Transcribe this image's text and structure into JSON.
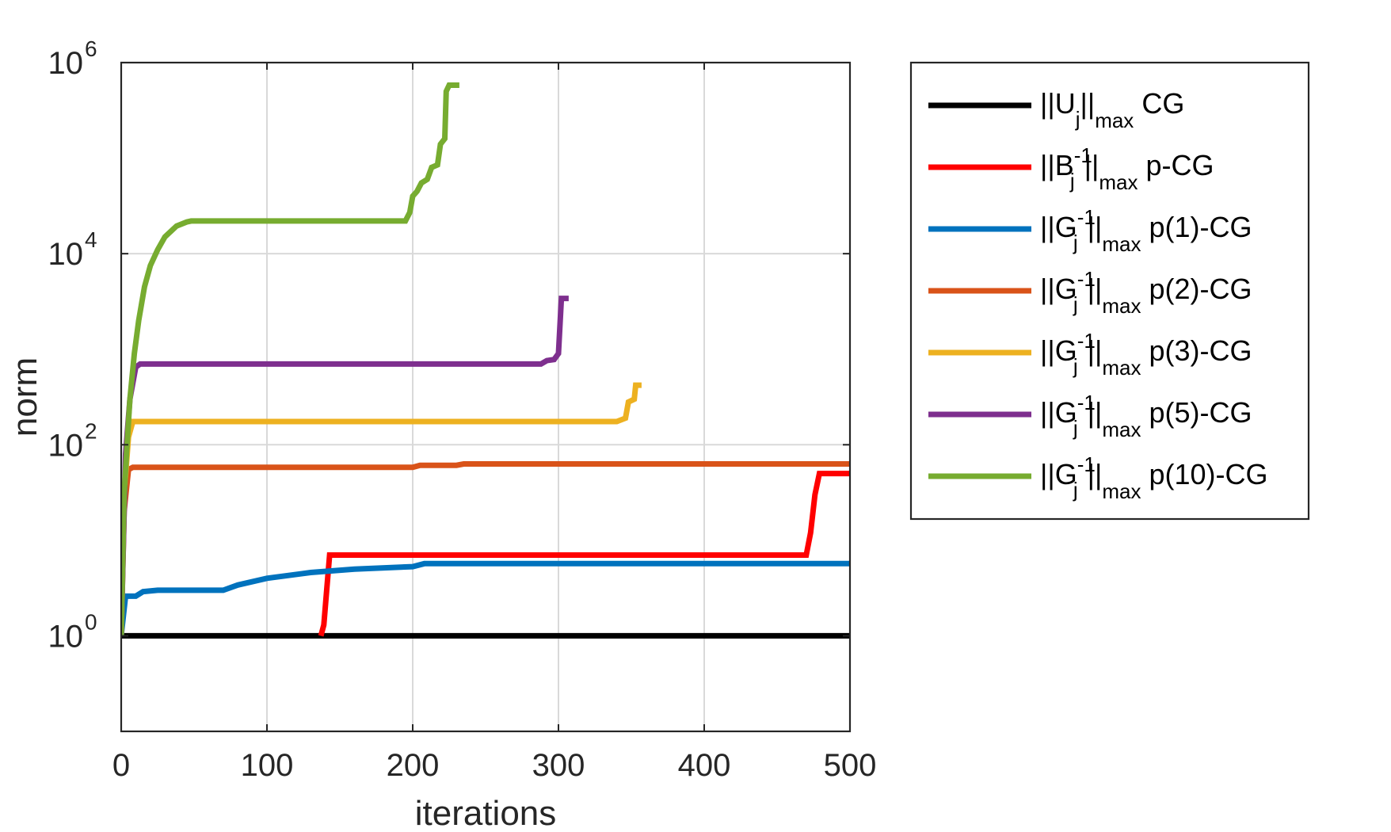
{
  "chart_data": {
    "type": "line",
    "xlabel": "iterations",
    "ylabel": "norm",
    "xlim": [
      0,
      500
    ],
    "ylim": [
      0.1,
      1000000
    ],
    "yscale": "log",
    "grid": true,
    "legend_position": "outside-right",
    "x_ticks": [
      "0",
      "100",
      "200",
      "300",
      "400",
      "500"
    ],
    "y_ticks": [
      {
        "base": "10",
        "exp": "0",
        "value": 1
      },
      {
        "base": "10",
        "exp": "2",
        "value": 100
      },
      {
        "base": "10",
        "exp": "4",
        "value": 10000
      },
      {
        "base": "10",
        "exp": "6",
        "value": 1000000
      }
    ],
    "series": [
      {
        "name": "||Uj||max CG",
        "legend": {
          "pre": "||U",
          "sub1": "j",
          "sup": "",
          "mid": "||",
          "sub2": "max",
          "post": " CG"
        },
        "color": "#000000",
        "points": [
          [
            0,
            1
          ],
          [
            500,
            1
          ]
        ]
      },
      {
        "name": "||Bj-1||max p-CG",
        "legend": {
          "pre": "||B",
          "sub1": "j",
          "sup": "-1",
          "mid": "||",
          "sub2": "max",
          "post": " p-CG"
        },
        "color": "#ff0000",
        "points": [
          [
            137,
            1
          ],
          [
            139,
            1.3
          ],
          [
            141,
            3
          ],
          [
            143,
            7
          ],
          [
            300,
            7
          ],
          [
            470,
            7
          ],
          [
            473,
            12
          ],
          [
            476,
            30
          ],
          [
            479,
            50
          ],
          [
            500,
            50
          ]
        ]
      },
      {
        "name": "||Gj-1||max p(1)-CG",
        "legend": {
          "pre": "||G",
          "sub1": "j",
          "sup": "-1",
          "mid": "||",
          "sub2": "max",
          "post": " p(1)-CG"
        },
        "color": "#0072bd",
        "points": [
          [
            0,
            1
          ],
          [
            3,
            2.6
          ],
          [
            10,
            2.6
          ],
          [
            15,
            2.9
          ],
          [
            25,
            3.0
          ],
          [
            70,
            3.0
          ],
          [
            80,
            3.4
          ],
          [
            100,
            4.0
          ],
          [
            130,
            4.6
          ],
          [
            160,
            5.0
          ],
          [
            200,
            5.3
          ],
          [
            208,
            5.7
          ],
          [
            300,
            5.7
          ],
          [
            500,
            5.7
          ]
        ]
      },
      {
        "name": "||Gj-1||max p(2)-CG",
        "legend": {
          "pre": "||G",
          "sub1": "j",
          "sup": "-1",
          "mid": "||",
          "sub2": "max",
          "post": " p(2)-CG"
        },
        "color": "#d95319",
        "points": [
          [
            0,
            1
          ],
          [
            2,
            20
          ],
          [
            5,
            55
          ],
          [
            8,
            58
          ],
          [
            200,
            58
          ],
          [
            205,
            61
          ],
          [
            230,
            61
          ],
          [
            235,
            63
          ],
          [
            500,
            63
          ]
        ]
      },
      {
        "name": "||Gj-1||max p(3)-CG",
        "legend": {
          "pre": "||G",
          "sub1": "j",
          "sup": "-1",
          "mid": "||",
          "sub2": "max",
          "post": " p(3)-CG"
        },
        "color": "#edb120",
        "points": [
          [
            0,
            1
          ],
          [
            2,
            30
          ],
          [
            5,
            120
          ],
          [
            8,
            175
          ],
          [
            340,
            175
          ],
          [
            346,
            190
          ],
          [
            348,
            280
          ],
          [
            352,
            300
          ],
          [
            353,
            420
          ],
          [
            357,
            420
          ]
        ]
      },
      {
        "name": "||Gj-1||max p(5)-CG",
        "legend": {
          "pre": "||G",
          "sub1": "j",
          "sup": "-1",
          "mid": "||",
          "sub2": "max",
          "post": " p(5)-CG"
        },
        "color": "#7e2f8e",
        "points": [
          [
            0,
            1
          ],
          [
            3,
            80
          ],
          [
            6,
            300
          ],
          [
            10,
            650
          ],
          [
            13,
            700
          ],
          [
            288,
            700
          ],
          [
            292,
            760
          ],
          [
            297,
            780
          ],
          [
            300,
            900
          ],
          [
            302,
            3400
          ],
          [
            307,
            3400
          ]
        ]
      },
      {
        "name": "||Gj-1||max p(10)-CG",
        "legend": {
          "pre": "||G",
          "sub1": "j",
          "sup": "-1",
          "mid": "||",
          "sub2": "max",
          "post": " p(10)-CG"
        },
        "color": "#77ac30",
        "points": [
          [
            0,
            1
          ],
          [
            2,
            30
          ],
          [
            4,
            100
          ],
          [
            6,
            300
          ],
          [
            9,
            900
          ],
          [
            12,
            2000
          ],
          [
            16,
            4500
          ],
          [
            20,
            7500
          ],
          [
            25,
            11000
          ],
          [
            30,
            15000
          ],
          [
            38,
            19500
          ],
          [
            45,
            21500
          ],
          [
            48,
            22000
          ],
          [
            150,
            22000
          ],
          [
            195,
            22000
          ],
          [
            198,
            27000
          ],
          [
            200,
            40000
          ],
          [
            203,
            45000
          ],
          [
            206,
            55000
          ],
          [
            210,
            60000
          ],
          [
            213,
            80000
          ],
          [
            217,
            85000
          ],
          [
            219,
            140000
          ],
          [
            222,
            160000
          ],
          [
            223,
            500000
          ],
          [
            225,
            580000
          ],
          [
            232,
            580000
          ]
        ]
      }
    ]
  }
}
